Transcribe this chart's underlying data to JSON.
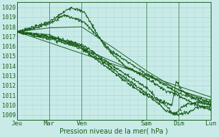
{
  "title": "",
  "xlabel": "Pression niveau de la mer( hPa )",
  "ylabel": "",
  "ylim": [
    1008.5,
    1020.5
  ],
  "xlim": [
    0,
    144
  ],
  "background_color": "#c8ebe8",
  "grid_color": "#a8d4d0",
  "line_color": "#1a5c1a",
  "tick_label_color": "#1a5c1a",
  "day_labels": [
    "Jeu",
    "Mar",
    "Ven",
    "Sam",
    "Dim",
    "Lun"
  ],
  "day_positions": [
    0,
    24,
    48,
    96,
    120,
    144
  ],
  "yticks": [
    1009,
    1010,
    1011,
    1012,
    1013,
    1014,
    1015,
    1016,
    1017,
    1018,
    1019,
    1020
  ],
  "figsize": [
    3.2,
    2.0
  ],
  "dpi": 100
}
